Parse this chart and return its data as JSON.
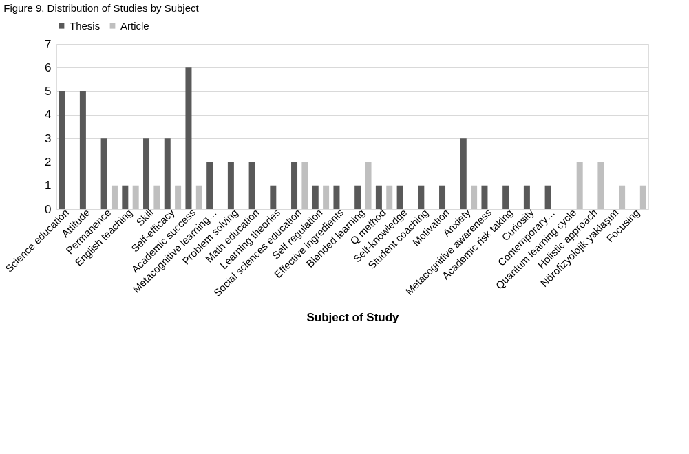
{
  "chart_data": {
    "type": "bar",
    "title": "Figure 9. Distribution of Studies by Subject",
    "xlabel": "Subject of Study",
    "categories": [
      "Science education",
      "Attitude",
      "Permanence",
      "English teaching",
      "Skill",
      "Self-efficacy",
      "Academic success",
      "Metacognitive learning…",
      "Problem solving",
      "Math education",
      "Learning theories",
      "Social sciences education",
      "Self regulation",
      "Effective ingredients",
      "Blended learning",
      "Q method",
      "Self-knowledge",
      "Student coaching",
      "Motivation",
      "Anxiety",
      "Metacognitive awareness",
      "Academic risk taking",
      "Curiosity",
      "Contemporary…",
      "Quantum learning cycle",
      "Holistic approach",
      "Nörofizyolojik yaklaşım",
      "Focusing"
    ],
    "series": [
      {
        "name": "Thesis",
        "color": "#595959",
        "values": [
          5,
          5,
          3,
          1,
          3,
          3,
          6,
          2,
          2,
          2,
          1,
          2,
          1,
          1,
          1,
          1,
          1,
          1,
          1,
          3,
          1,
          1,
          1,
          1,
          0,
          0,
          0,
          0
        ]
      },
      {
        "name": "Article",
        "color": "#bfbfbf",
        "values": [
          0,
          0,
          1,
          1,
          1,
          1,
          1,
          0,
          0,
          0,
          0,
          2,
          1,
          0,
          2,
          1,
          0,
          0,
          0,
          1,
          0,
          0,
          0,
          0,
          2,
          2,
          1,
          1
        ]
      }
    ],
    "ylim": [
      0,
      7
    ],
    "yticks": [
      0,
      1,
      2,
      3,
      4,
      5,
      6,
      7
    ],
    "grid": "y",
    "legend": "top"
  }
}
